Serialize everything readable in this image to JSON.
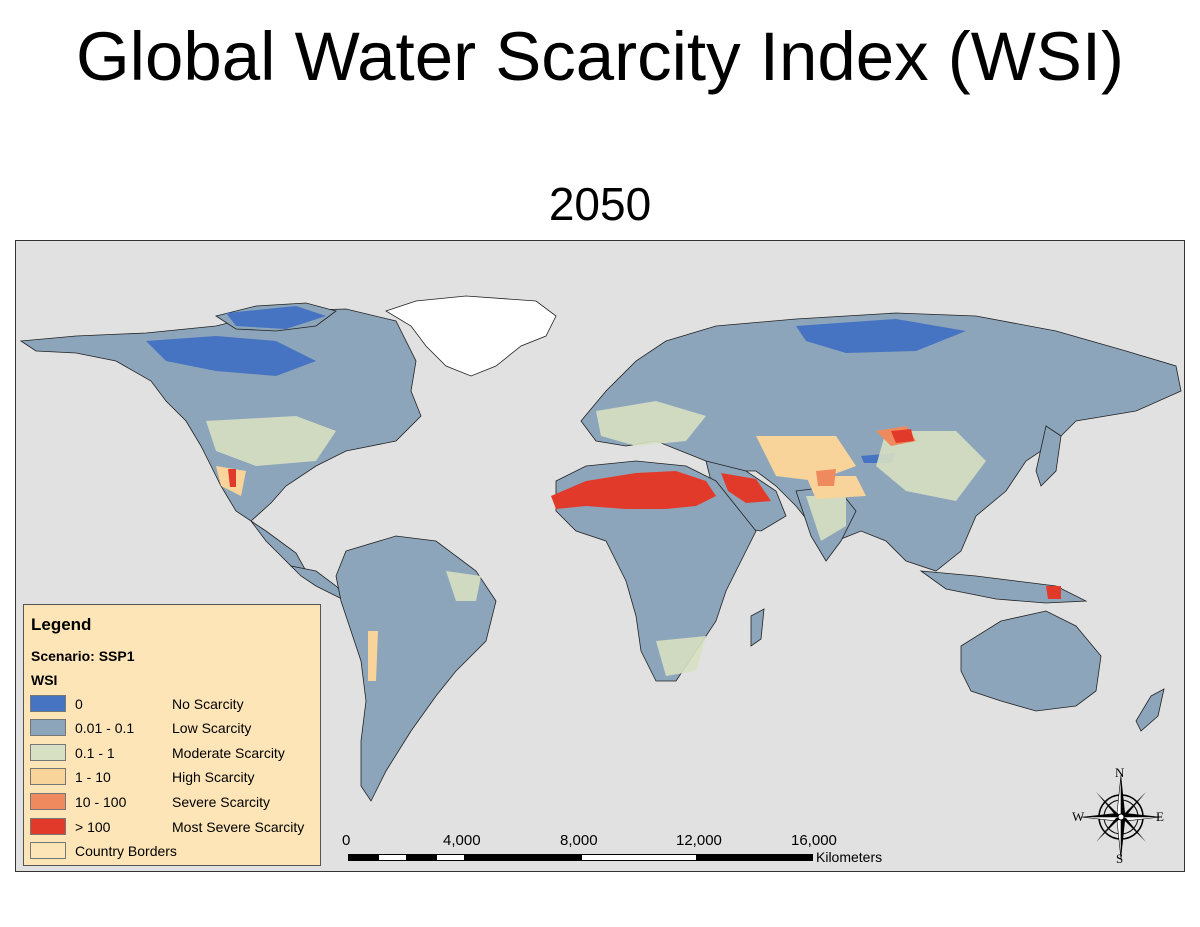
{
  "header": {
    "title": "Global Water Scarcity Index (WSI)",
    "year": "2050"
  },
  "legend": {
    "title": "Legend",
    "scenario": "Scenario: SSP1",
    "field": "WSI",
    "items": [
      {
        "range": "0",
        "label": "No Scarcity",
        "color": "#4673c2"
      },
      {
        "range": "0.01 - 0.1",
        "label": "Low Scarcity",
        "color": "#8ca5bb"
      },
      {
        "range": "0.1 - 1",
        "label": "Moderate Scarcity",
        "color": "#d7e0c2"
      },
      {
        "range": "1 - 10",
        "label": "High Scarcity",
        "color": "#f8d49b"
      },
      {
        "range": "10 - 100",
        "label": "Severe Scarcity",
        "color": "#ee8a5e"
      },
      {
        "range": "> 100",
        "label": "Most Severe Scarcity",
        "color": "#e23a2a"
      },
      {
        "range": "Country Borders",
        "label": "",
        "color": "#fde5b8"
      }
    ]
  },
  "scale_bar": {
    "ticks": [
      "0",
      "4,000",
      "8,000",
      "12,000",
      "16,000"
    ],
    "unit": "Kilometers"
  },
  "compass": {
    "n": "N",
    "s": "S",
    "e": "E",
    "w": "W"
  },
  "colors": {
    "ocean": "#e1e1e1",
    "land": "#8ca5bb",
    "greenland": "#ffffff"
  }
}
